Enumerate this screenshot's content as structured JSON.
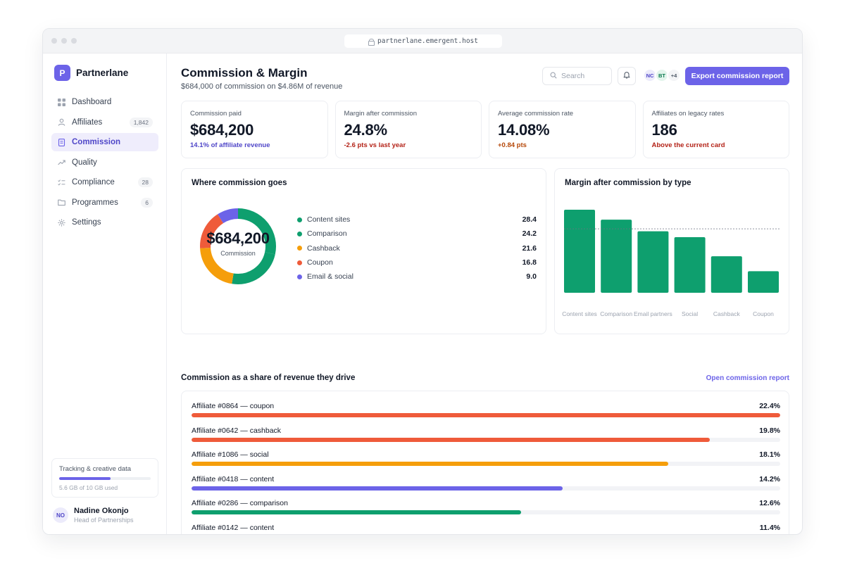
{
  "browser": {
    "url": "partnerlane.emergent.host"
  },
  "brand": {
    "initial": "P",
    "name": "Partnerlane"
  },
  "nav": [
    {
      "label": "Dashboard",
      "icon": "grid-icon",
      "badge": ""
    },
    {
      "label": "Affiliates",
      "icon": "user-icon",
      "badge": "1,842"
    },
    {
      "label": "Commission",
      "icon": "document-icon",
      "badge": "",
      "active": true
    },
    {
      "label": "Quality",
      "icon": "trend-icon",
      "badge": ""
    },
    {
      "label": "Compliance",
      "icon": "checklist-icon",
      "badge": "28"
    },
    {
      "label": "Programmes",
      "icon": "folder-icon",
      "badge": "6"
    },
    {
      "label": "Settings",
      "icon": "gear-icon",
      "badge": ""
    }
  ],
  "storage": {
    "title": "Tracking & creative data",
    "note": "5.6 GB of 10 GB used",
    "used_fraction": 0.56,
    "color": "#6c63e8"
  },
  "user": {
    "initials": "NO",
    "name": "Nadine Okonjo",
    "role": "Head of Partnerships"
  },
  "header": {
    "title": "Commission & Margin",
    "subtitle": "$684,000 of commission on $4.86M of revenue",
    "search_placeholder": "Search",
    "avatars": [
      "NC",
      "BT",
      "+4"
    ],
    "export_label": "Export commission report"
  },
  "kpis": [
    {
      "label": "Commission paid",
      "value": "$684,200",
      "note": "14.1% of affiliate revenue",
      "note_color": "#4f46c8"
    },
    {
      "label": "Margin after commission",
      "value": "24.8%",
      "note": "-2.6 pts vs last year",
      "note_color": "#b42318"
    },
    {
      "label": "Average commission rate",
      "value": "14.08%",
      "note": "+0.84 pts",
      "note_color": "#b54708"
    },
    {
      "label": "Affiliates on legacy rates",
      "value": "186",
      "note": "Above the current card",
      "note_color": "#b42318"
    }
  ],
  "donut_card": {
    "title": "Where commission goes",
    "center_value": "$684,200",
    "center_caption": "Commission",
    "chart_data": {
      "type": "pie",
      "categories": [
        "Content sites",
        "Comparison",
        "Cashback",
        "Coupon",
        "Email & social"
      ],
      "values": [
        28.4,
        24.2,
        21.6,
        16.8,
        9.0
      ],
      "value_labels": [
        "28.4",
        "24.2",
        "21.6",
        "16.8",
        "9.0"
      ],
      "colors": [
        "#0e9f6e",
        "#0e9f6e",
        "#f59e0b",
        "#ef5b3a",
        "#6c63e8"
      ]
    }
  },
  "bar_card": {
    "title": "Margin after commission by type",
    "chart_data": {
      "type": "bar",
      "categories": [
        "Content sites",
        "Comparison",
        "Email partners",
        "Social",
        "Cashback",
        "Coupon"
      ],
      "values": [
        100,
        88,
        74,
        67,
        44,
        26
      ],
      "reference_line": 77,
      "color": "#0e9f6e"
    }
  },
  "share": {
    "title": "Commission as a share of revenue they drive",
    "link": "Open commission report",
    "rows": [
      {
        "name": "Affiliate #0864 — coupon",
        "pct": "22.4%",
        "fraction": 1.0,
        "color": "#ef5b3a"
      },
      {
        "name": "Affiliate #0642 — cashback",
        "pct": "19.8%",
        "fraction": 0.88,
        "color": "#ef5b3a"
      },
      {
        "name": "Affiliate #1086 — social",
        "pct": "18.1%",
        "fraction": 0.81,
        "color": "#f59e0b"
      },
      {
        "name": "Affiliate #0418 — content",
        "pct": "14.2%",
        "fraction": 0.63,
        "color": "#6c63e8"
      },
      {
        "name": "Affiliate #0286 — comparison",
        "pct": "12.6%",
        "fraction": 0.56,
        "color": "#0e9f6e"
      },
      {
        "name": "Affiliate #0142 — content",
        "pct": "11.4%",
        "fraction": 0.51,
        "color": "#0e9f6e"
      }
    ]
  }
}
